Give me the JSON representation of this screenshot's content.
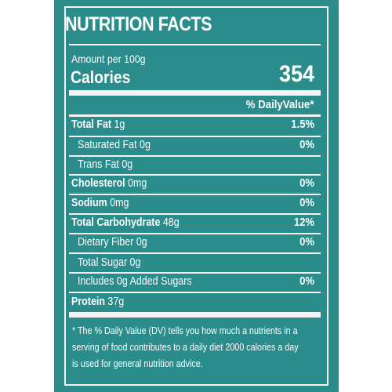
{
  "header": {
    "title": "NUTRITION FACTS"
  },
  "serving": {
    "amount": "Amount per 100g"
  },
  "calories": {
    "label": "Calories",
    "value": "354"
  },
  "dv_header": "% DailyValue*",
  "rows": {
    "total_fat": {
      "name": "Total Fat",
      "amount": " 1g",
      "dv": "1.5%"
    },
    "saturated_fat": {
      "name": "Saturated Fat 0g",
      "dv": "0%"
    },
    "trans_fat": {
      "name": "Trans Fat 0g"
    },
    "cholesterol": {
      "name": "Cholesterol",
      "amount": " 0mg",
      "dv": "0%"
    },
    "sodium": {
      "name": "Sodium",
      "amount": " 0mg",
      "dv": "0%"
    },
    "total_carbohydrate": {
      "name": "Total Carbohydrate",
      "amount": " 48g",
      "dv": "12%"
    },
    "dietary_fiber": {
      "name": "Dietary Fiber 0g",
      "dv": "0%"
    },
    "total_sugar": {
      "name": "Total Sugar 0g"
    },
    "added_sugars": {
      "name": "Includes 0g Added Sugars",
      "dv": "0%"
    },
    "protein": {
      "name": "Protein",
      "amount": " 37g"
    }
  },
  "footnote": {
    "line1": "* The % Daily Value (DV) tells you how much a nutrients in a",
    "line2": "serving of food contributes to a daily diet 2000 calories a day",
    "line3": "is used for general nutrition advice."
  },
  "colors": {
    "panel": "#2b8c8c",
    "text": "#ffffff",
    "rules": "#f4f4f4"
  }
}
